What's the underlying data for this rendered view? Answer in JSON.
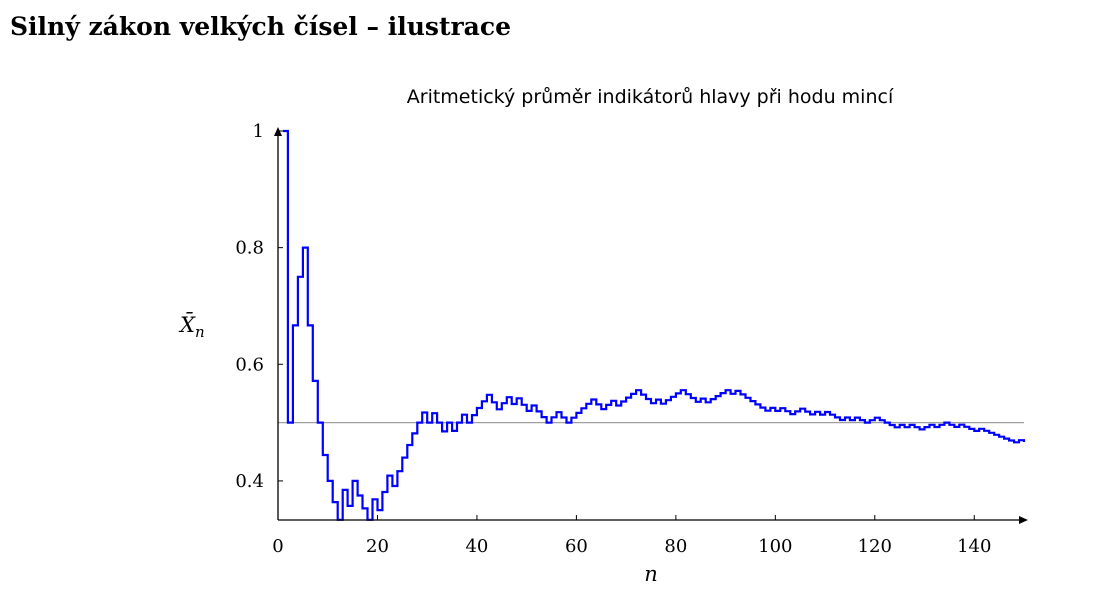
{
  "page": {
    "heading": "Silný zákon velkých čísel – ilustrace"
  },
  "colors": {
    "series": "#0000ff",
    "reference": "#a0a0a0",
    "axis": "#000000"
  },
  "chart_data": {
    "type": "line",
    "step": true,
    "title": "Aritmetický průměr indikátorů hlavy při hodu mincí",
    "xlabel": "n",
    "ylabel": "X̄",
    "ylabel_subscript": "n",
    "xlim": [
      0,
      150
    ],
    "ylim": [
      0.333,
      1.0
    ],
    "xticks": [
      0,
      20,
      40,
      60,
      80,
      100,
      120,
      140
    ],
    "yticks": [
      0.4,
      0.6,
      0.8,
      1
    ],
    "xtick_labels": [
      "0",
      "20",
      "40",
      "60",
      "80",
      "100",
      "120",
      "140"
    ],
    "ytick_labels": [
      "0.4",
      "0.6",
      "0.8",
      "1"
    ],
    "reference_line": {
      "y": 0.5
    },
    "grid": false,
    "heads": [
      1,
      0,
      1,
      1,
      1,
      0,
      0,
      0,
      0,
      0,
      0,
      0,
      1,
      0,
      1,
      0,
      0,
      0,
      1,
      0,
      1,
      1,
      0,
      1,
      1,
      1,
      1,
      1,
      1,
      0,
      1,
      0,
      0,
      1,
      0,
      1,
      1,
      0,
      1,
      1,
      1,
      1,
      0,
      0,
      1,
      1,
      0,
      1,
      0,
      0,
      1,
      0,
      0,
      0,
      1,
      1,
      0,
      0,
      1,
      1,
      1,
      1,
      1,
      0,
      0,
      1,
      1,
      0,
      1,
      1,
      1,
      1,
      0,
      0,
      0,
      1,
      0,
      1,
      1,
      1,
      1,
      0,
      0,
      0,
      1,
      0,
      1,
      1,
      1,
      1,
      0,
      1,
      0,
      0,
      0,
      0,
      0,
      0,
      1,
      0,
      1,
      0,
      0,
      1,
      1,
      0,
      0,
      1,
      0,
      1,
      0,
      0,
      0,
      1,
      0,
      1,
      0,
      0,
      1,
      1,
      0,
      0,
      0,
      0,
      1,
      0,
      1,
      0,
      0,
      1,
      1,
      0,
      1,
      1,
      0,
      0,
      1,
      0,
      0,
      0,
      1,
      0,
      0,
      0,
      0,
      0,
      0,
      0,
      1,
      0
    ]
  }
}
